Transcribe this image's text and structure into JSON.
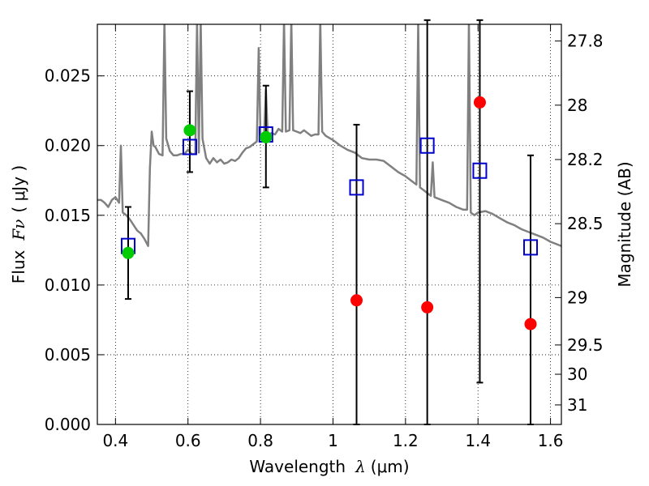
{
  "chart_data": {
    "type": "scatter",
    "title": "",
    "xlabel": "Wavelength",
    "xlabel_symbol": "λ",
    "xlabel_unit": "(μm)",
    "ylabel": "Flux",
    "ylabel_symbol": "Fν",
    "ylabel_unit": "( μJy )",
    "y2label": "Magnitude (AB)",
    "xlim": [
      0.35,
      1.63
    ],
    "ylim": [
      0.0,
      0.0287
    ],
    "grid": true,
    "x_ticks": [
      0.4,
      0.6,
      0.8,
      1.0,
      1.2,
      1.4,
      1.6
    ],
    "x_tick_labels": [
      "0.4",
      "0.6",
      "0.8",
      "1",
      "1.2",
      "1.4",
      "1.6"
    ],
    "y_ticks": [
      0.0,
      0.005,
      0.01,
      0.015,
      0.02,
      0.025
    ],
    "y_tick_labels": [
      "0.000",
      "0.005",
      "0.010",
      "0.015",
      "0.020",
      "0.025"
    ],
    "y2_ticks": [
      {
        "label": "27.8",
        "flux": 0.0275
      },
      {
        "label": "28",
        "flux": 0.0229
      },
      {
        "label": "28.2",
        "flux": 0.019
      },
      {
        "label": "28.5",
        "flux": 0.0144
      },
      {
        "label": "29",
        "flux": 0.0091
      },
      {
        "label": "29.5",
        "flux": 0.0057
      },
      {
        "label": "30",
        "flux": 0.0036
      },
      {
        "label": "31",
        "flux": 0.0014
      }
    ],
    "model_spectrum": {
      "color": "#808080",
      "points": [
        [
          0.35,
          0.0161
        ],
        [
          0.36,
          0.0161
        ],
        [
          0.37,
          0.0159
        ],
        [
          0.38,
          0.0156
        ],
        [
          0.39,
          0.0161
        ],
        [
          0.4,
          0.0163
        ],
        [
          0.41,
          0.0159
        ],
        [
          0.415,
          0.02
        ],
        [
          0.42,
          0.0152
        ],
        [
          0.43,
          0.015
        ],
        [
          0.44,
          0.0147
        ],
        [
          0.45,
          0.0143
        ],
        [
          0.46,
          0.0139
        ],
        [
          0.47,
          0.0137
        ],
        [
          0.48,
          0.0133
        ],
        [
          0.49,
          0.0128
        ],
        [
          0.495,
          0.0184
        ],
        [
          0.5,
          0.021
        ],
        [
          0.505,
          0.02
        ],
        [
          0.51,
          0.0199
        ],
        [
          0.52,
          0.0194
        ],
        [
          0.53,
          0.0193
        ],
        [
          0.535,
          0.029
        ],
        [
          0.54,
          0.0205
        ],
        [
          0.55,
          0.0196
        ],
        [
          0.56,
          0.0193
        ],
        [
          0.57,
          0.0193
        ],
        [
          0.58,
          0.0194
        ],
        [
          0.59,
          0.0194
        ],
        [
          0.6,
          0.0197
        ],
        [
          0.61,
          0.0194
        ],
        [
          0.62,
          0.0194
        ],
        [
          0.625,
          0.029
        ],
        [
          0.63,
          0.0195
        ],
        [
          0.635,
          0.029
        ],
        [
          0.64,
          0.0205
        ],
        [
          0.65,
          0.0191
        ],
        [
          0.66,
          0.0187
        ],
        [
          0.67,
          0.0191
        ],
        [
          0.68,
          0.0188
        ],
        [
          0.69,
          0.019
        ],
        [
          0.7,
          0.0187
        ],
        [
          0.71,
          0.0188
        ],
        [
          0.72,
          0.019
        ],
        [
          0.73,
          0.0189
        ],
        [
          0.74,
          0.0191
        ],
        [
          0.75,
          0.0195
        ],
        [
          0.76,
          0.0198
        ],
        [
          0.77,
          0.0199
        ],
        [
          0.78,
          0.0201
        ],
        [
          0.79,
          0.0203
        ],
        [
          0.795,
          0.027
        ],
        [
          0.8,
          0.0206
        ],
        [
          0.81,
          0.0208
        ],
        [
          0.815,
          0.024
        ],
        [
          0.82,
          0.0207
        ],
        [
          0.83,
          0.0209
        ],
        [
          0.84,
          0.0208
        ],
        [
          0.85,
          0.0212
        ],
        [
          0.86,
          0.021
        ],
        [
          0.865,
          0.029
        ],
        [
          0.87,
          0.021
        ],
        [
          0.88,
          0.0211
        ],
        [
          0.885,
          0.029
        ],
        [
          0.89,
          0.0211
        ],
        [
          0.9,
          0.021
        ],
        [
          0.91,
          0.0209
        ],
        [
          0.92,
          0.0211
        ],
        [
          0.93,
          0.0209
        ],
        [
          0.94,
          0.0207
        ],
        [
          0.95,
          0.0208
        ],
        [
          0.96,
          0.0208
        ],
        [
          0.965,
          0.029
        ],
        [
          0.97,
          0.021
        ],
        [
          0.98,
          0.0207
        ],
        [
          1.0,
          0.0204
        ],
        [
          1.02,
          0.02
        ],
        [
          1.04,
          0.0197
        ],
        [
          1.06,
          0.0195
        ],
        [
          1.08,
          0.0191
        ],
        [
          1.1,
          0.019
        ],
        [
          1.12,
          0.019
        ],
        [
          1.14,
          0.0189
        ],
        [
          1.16,
          0.0185
        ],
        [
          1.18,
          0.0181
        ],
        [
          1.2,
          0.0178
        ],
        [
          1.22,
          0.0174
        ],
        [
          1.23,
          0.0172
        ],
        [
          1.235,
          0.029
        ],
        [
          1.24,
          0.017
        ],
        [
          1.25,
          0.0168
        ],
        [
          1.26,
          0.0166
        ],
        [
          1.27,
          0.0164
        ],
        [
          1.275,
          0.0188
        ],
        [
          1.28,
          0.0163
        ],
        [
          1.3,
          0.0161
        ],
        [
          1.32,
          0.0159
        ],
        [
          1.34,
          0.0156
        ],
        [
          1.36,
          0.0154
        ],
        [
          1.37,
          0.0154
        ],
        [
          1.375,
          0.029
        ],
        [
          1.38,
          0.0152
        ],
        [
          1.39,
          0.015
        ],
        [
          1.4,
          0.0152
        ],
        [
          1.42,
          0.0153
        ],
        [
          1.44,
          0.0151
        ],
        [
          1.46,
          0.0148
        ],
        [
          1.48,
          0.0145
        ],
        [
          1.5,
          0.0143
        ],
        [
          1.52,
          0.014
        ],
        [
          1.54,
          0.0138
        ],
        [
          1.56,
          0.0136
        ],
        [
          1.58,
          0.0134
        ],
        [
          1.6,
          0.0131
        ],
        [
          1.63,
          0.0128
        ]
      ]
    },
    "model_bands": {
      "marker": "open-square",
      "color": "#0000cc",
      "points": [
        [
          0.435,
          0.0128
        ],
        [
          0.605,
          0.0199
        ],
        [
          0.815,
          0.0208
        ],
        [
          1.065,
          0.017
        ],
        [
          1.26,
          0.02
        ],
        [
          1.405,
          0.0182
        ],
        [
          1.545,
          0.0127
        ]
      ]
    },
    "detections": {
      "marker": "filled-circle",
      "color": "#00cc00",
      "points": [
        {
          "x": 0.435,
          "y": 0.0123,
          "yerr_low": 0.009,
          "yerr_high": 0.0156
        },
        {
          "x": 0.605,
          "y": 0.0211,
          "yerr_low": 0.0181,
          "yerr_high": 0.0239
        },
        {
          "x": 0.815,
          "y": 0.0206,
          "yerr_low": 0.017,
          "yerr_high": 0.0243
        }
      ]
    },
    "upper_limits": {
      "marker": "filled-circle",
      "color": "#ff0000",
      "points": [
        {
          "x": 1.065,
          "y": 0.0089,
          "yerr_low": 0.0,
          "yerr_high": 0.0215
        },
        {
          "x": 1.26,
          "y": 0.0084,
          "yerr_low": 0.0,
          "yerr_high": 0.029
        },
        {
          "x": 1.405,
          "y": 0.0231,
          "yerr_low": 0.003,
          "yerr_high": 0.029
        },
        {
          "x": 1.545,
          "y": 0.0072,
          "yerr_low": 0.0,
          "yerr_high": 0.0193
        }
      ]
    }
  }
}
